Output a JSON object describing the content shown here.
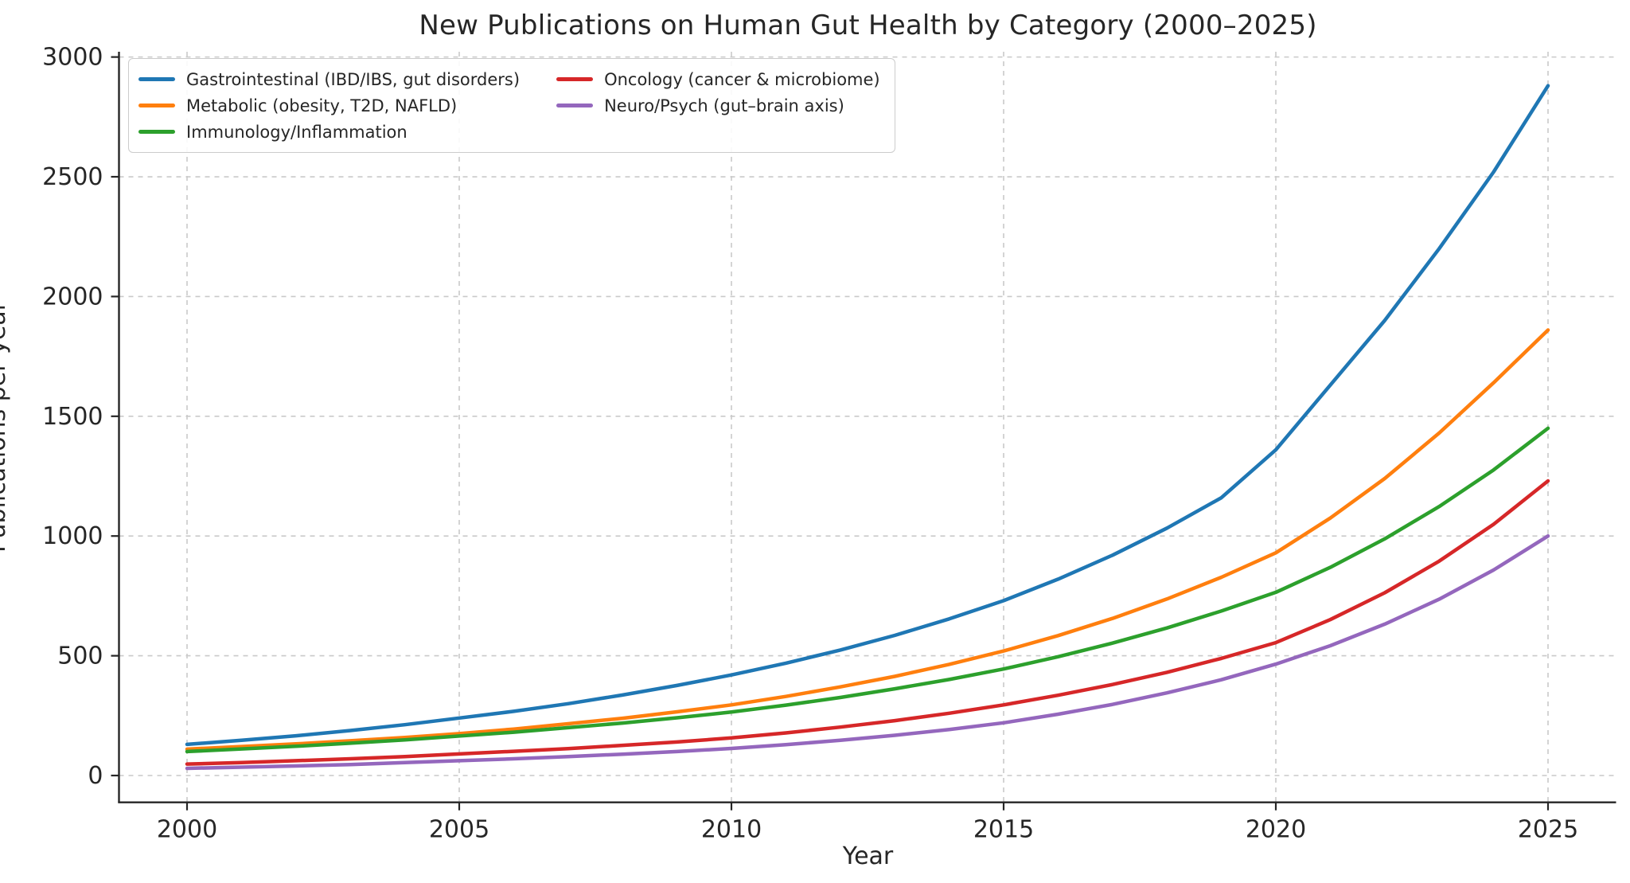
{
  "chart_data": {
    "type": "line",
    "title": "New Publications on Human Gut Health by Category (2000–2025)",
    "xlabel": "Year",
    "ylabel": "Publications per year",
    "grid": "dashed",
    "legend_position": "upper-left",
    "x_ticks": [
      2000,
      2005,
      2010,
      2015,
      2020,
      2025
    ],
    "y_ticks": [
      0,
      500,
      1000,
      1500,
      2000,
      2500,
      3000
    ],
    "xlim": [
      1998.75,
      2026.25
    ],
    "ylim": [
      -112,
      3022
    ],
    "x": [
      2000,
      2001,
      2002,
      2003,
      2004,
      2005,
      2006,
      2007,
      2008,
      2009,
      2010,
      2011,
      2012,
      2013,
      2014,
      2015,
      2016,
      2017,
      2018,
      2019,
      2020,
      2021,
      2022,
      2023,
      2024,
      2025
    ],
    "series": [
      {
        "name": "Gastrointestinal (IBD/IBS, gut disorders)",
        "color": "#1f77b4",
        "values": [
          130,
          147,
          166,
          188,
          212,
          240,
          268,
          300,
          336,
          376,
          420,
          469,
          524,
          585,
          654,
          730,
          820,
          920,
          1033,
          1160,
          1360,
          1630,
          1900,
          2200,
          2520,
          2880
        ]
      },
      {
        "name": "Metabolic (obesity, T2D, NAFLD)",
        "color": "#ff7f0e",
        "values": [
          110,
          121,
          132,
          145,
          159,
          175,
          194,
          216,
          239,
          266,
          295,
          330,
          370,
          414,
          464,
          520,
          584,
          656,
          737,
          828,
          930,
          1075,
          1240,
          1430,
          1640,
          1860
        ]
      },
      {
        "name": "Immunology/Inflammation",
        "color": "#2ca02c",
        "values": [
          100,
          111,
          122,
          135,
          149,
          165,
          181,
          200,
          219,
          241,
          265,
          294,
          326,
          362,
          401,
          445,
          496,
          553,
          616,
          687,
          765,
          869,
          988,
          1123,
          1276,
          1450
        ]
      },
      {
        "name": "Oncology (cancer & microbiome)",
        "color": "#d62728",
        "values": [
          48,
          54,
          62,
          70,
          79,
          90,
          101,
          112,
          126,
          140,
          157,
          178,
          202,
          229,
          260,
          295,
          335,
          380,
          431,
          489,
          555,
          651,
          763,
          895,
          1049,
          1230
        ]
      },
      {
        "name": "Neuro/Psych (gut–brain axis)",
        "color": "#9467bd",
        "values": [
          30,
          35,
          40,
          46,
          54,
          62,
          70,
          79,
          89,
          100,
          113,
          129,
          147,
          168,
          192,
          220,
          256,
          297,
          345,
          400,
          465,
          542,
          632,
          736,
          858,
          1000
        ]
      }
    ]
  }
}
